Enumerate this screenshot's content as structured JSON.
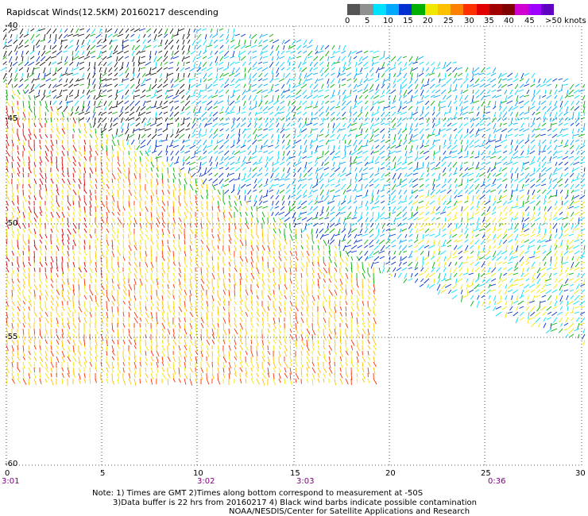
{
  "title": "Rapidscat Winds(12.5KM) 20160217 descending",
  "colorbar": {
    "labels": [
      "0",
      "5",
      "10",
      "15",
      "20",
      "25",
      "30",
      "35",
      "40",
      "45",
      ">50 knots"
    ],
    "colors": [
      "#555555",
      "#909090",
      "#00e0ff",
      "#00a8ff",
      "#0030d0",
      "#00b000",
      "#f0e800",
      "#ffc000",
      "#ff8000",
      "#ff3000",
      "#e00000",
      "#a00000",
      "#800000",
      "#d000d0",
      "#a000ff",
      "#6000c0"
    ]
  },
  "axes": {
    "lat_labels": [
      "-40",
      "-45",
      "-50",
      "-55",
      "-60"
    ],
    "lon_labels": [
      "0",
      "5",
      "10",
      "15",
      "20",
      "25",
      "30"
    ],
    "time_labels": [
      "3:01",
      "3:02",
      "3:03",
      "0:36"
    ]
  },
  "notes": {
    "line1": "Note: 1) Times are GMT 2)Times along bottom correspond to measurement at -50S",
    "line2": "3)Data buffer is 22 hrs from 20160217 4) Black wind barbs indicate possible contamination",
    "line3": "NOAA/NESDIS/Center for Satellite Applications and Research"
  }
}
